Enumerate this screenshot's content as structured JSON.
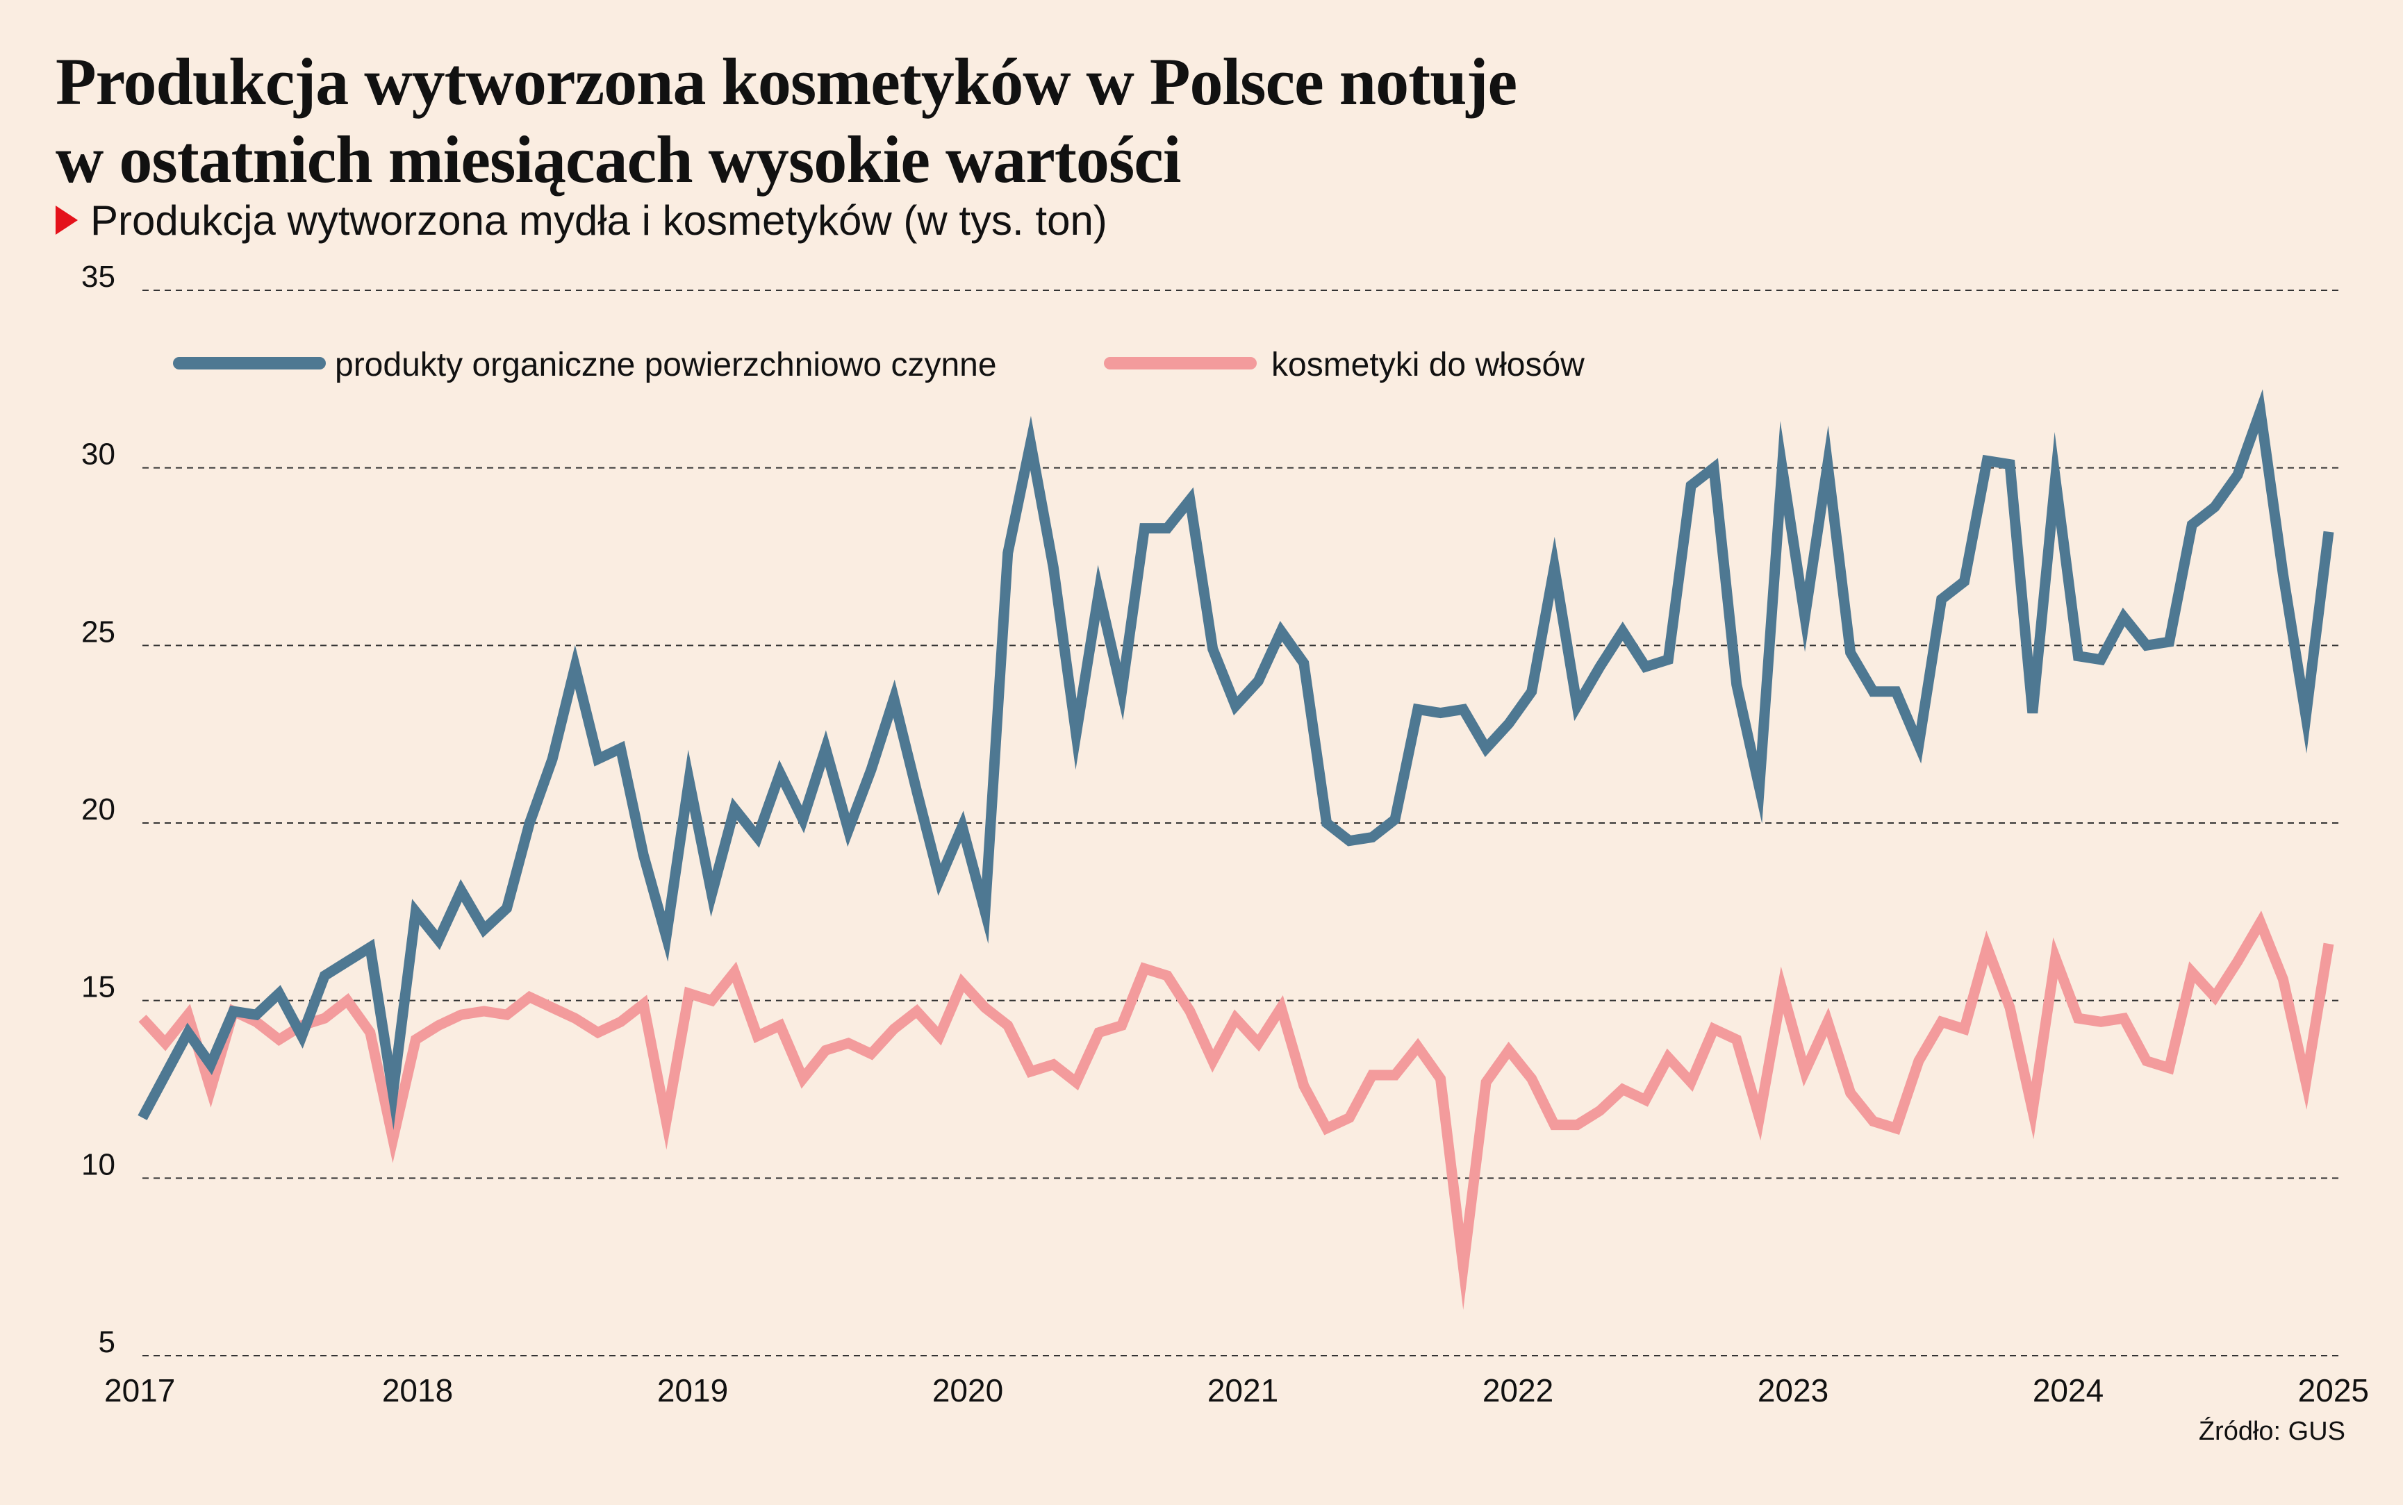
{
  "title_lines": [
    "Produkcja wytworzona kosmetyków w Polsce notuje",
    "w ostatnich miesiącach wysokie wartości"
  ],
  "subtitle": "Produkcja wytworzona mydła i kosmetyków (w tys. ton)",
  "source": "Źródło: GUS",
  "colors": {
    "accent": "#E4121B",
    "background": "#FAEDE1"
  },
  "chart_data": {
    "type": "line",
    "ylim": [
      5,
      35
    ],
    "yticks": [
      5,
      10,
      15,
      20,
      25,
      30,
      35
    ],
    "xlim": [
      2017,
      2025
    ],
    "xticks": [
      "2017",
      "2018",
      "2019",
      "2020",
      "2021",
      "2022",
      "2023",
      "2024",
      "2025"
    ],
    "grid": true,
    "legend_position": "top-left",
    "x_step": "monthly, 2017-01 to 2025-01",
    "series": [
      {
        "name": "produkty organiczne powierzchniowo czynne",
        "color": "#4E7892",
        "values": [
          11.7,
          12.9,
          14.1,
          13.2,
          14.7,
          14.6,
          15.2,
          14.0,
          15.7,
          16.1,
          16.5,
          12.4,
          17.5,
          16.7,
          18.1,
          17.0,
          17.6,
          20.0,
          21.8,
          24.4,
          21.8,
          22.1,
          19.1,
          16.8,
          21.2,
          18.0,
          20.4,
          19.6,
          21.4,
          20.1,
          22.1,
          19.8,
          21.5,
          23.5,
          20.9,
          18.4,
          19.9,
          17.5,
          27.6,
          30.7,
          27.2,
          22.5,
          26.5,
          23.7,
          28.3,
          28.3,
          29.1,
          24.9,
          23.3,
          24.0,
          25.4,
          24.5,
          20.0,
          19.5,
          19.6,
          20.1,
          23.2,
          23.1,
          23.2,
          22.1,
          22.8,
          23.7,
          27.2,
          23.3,
          24.4,
          25.4,
          24.4,
          24.6,
          29.5,
          30.0,
          23.9,
          21.0,
          30.0,
          25.8,
          30.1,
          24.8,
          23.7,
          23.7,
          22.2,
          26.3,
          26.8,
          30.2,
          30.1,
          23.1,
          29.7,
          24.7,
          24.6,
          25.8,
          25.0,
          25.1,
          28.4,
          28.9,
          29.8,
          31.6,
          27.0,
          23.0,
          28.2
        ]
      },
      {
        "name": "kosmetyki do włosów",
        "color": "#F39B9C",
        "values": [
          14.5,
          13.8,
          14.6,
          12.5,
          14.7,
          14.4,
          13.9,
          14.3,
          14.5,
          15.0,
          14.1,
          11.1,
          13.9,
          14.3,
          14.6,
          14.7,
          14.6,
          15.1,
          14.8,
          14.5,
          14.1,
          14.4,
          14.9,
          11.6,
          15.2,
          15.0,
          15.8,
          14.0,
          14.3,
          12.8,
          13.6,
          13.8,
          13.5,
          14.2,
          14.7,
          14.0,
          15.5,
          14.8,
          14.3,
          13.0,
          13.2,
          12.7,
          14.1,
          14.3,
          15.9,
          15.7,
          14.7,
          13.3,
          14.5,
          13.8,
          14.8,
          12.6,
          11.4,
          11.7,
          12.9,
          12.9,
          13.7,
          12.8,
          7.5,
          12.7,
          13.6,
          12.8,
          11.5,
          11.5,
          11.9,
          12.5,
          12.2,
          13.4,
          12.7,
          14.2,
          13.9,
          11.7,
          15.3,
          13.0,
          14.4,
          12.4,
          11.6,
          11.4,
          13.3,
          14.4,
          14.2,
          16.5,
          14.8,
          11.9,
          16.2,
          14.5,
          14.4,
          14.5,
          13.3,
          13.1,
          15.8,
          15.1,
          16.1,
          17.2,
          15.6,
          12.7,
          16.6
        ]
      }
    ]
  }
}
